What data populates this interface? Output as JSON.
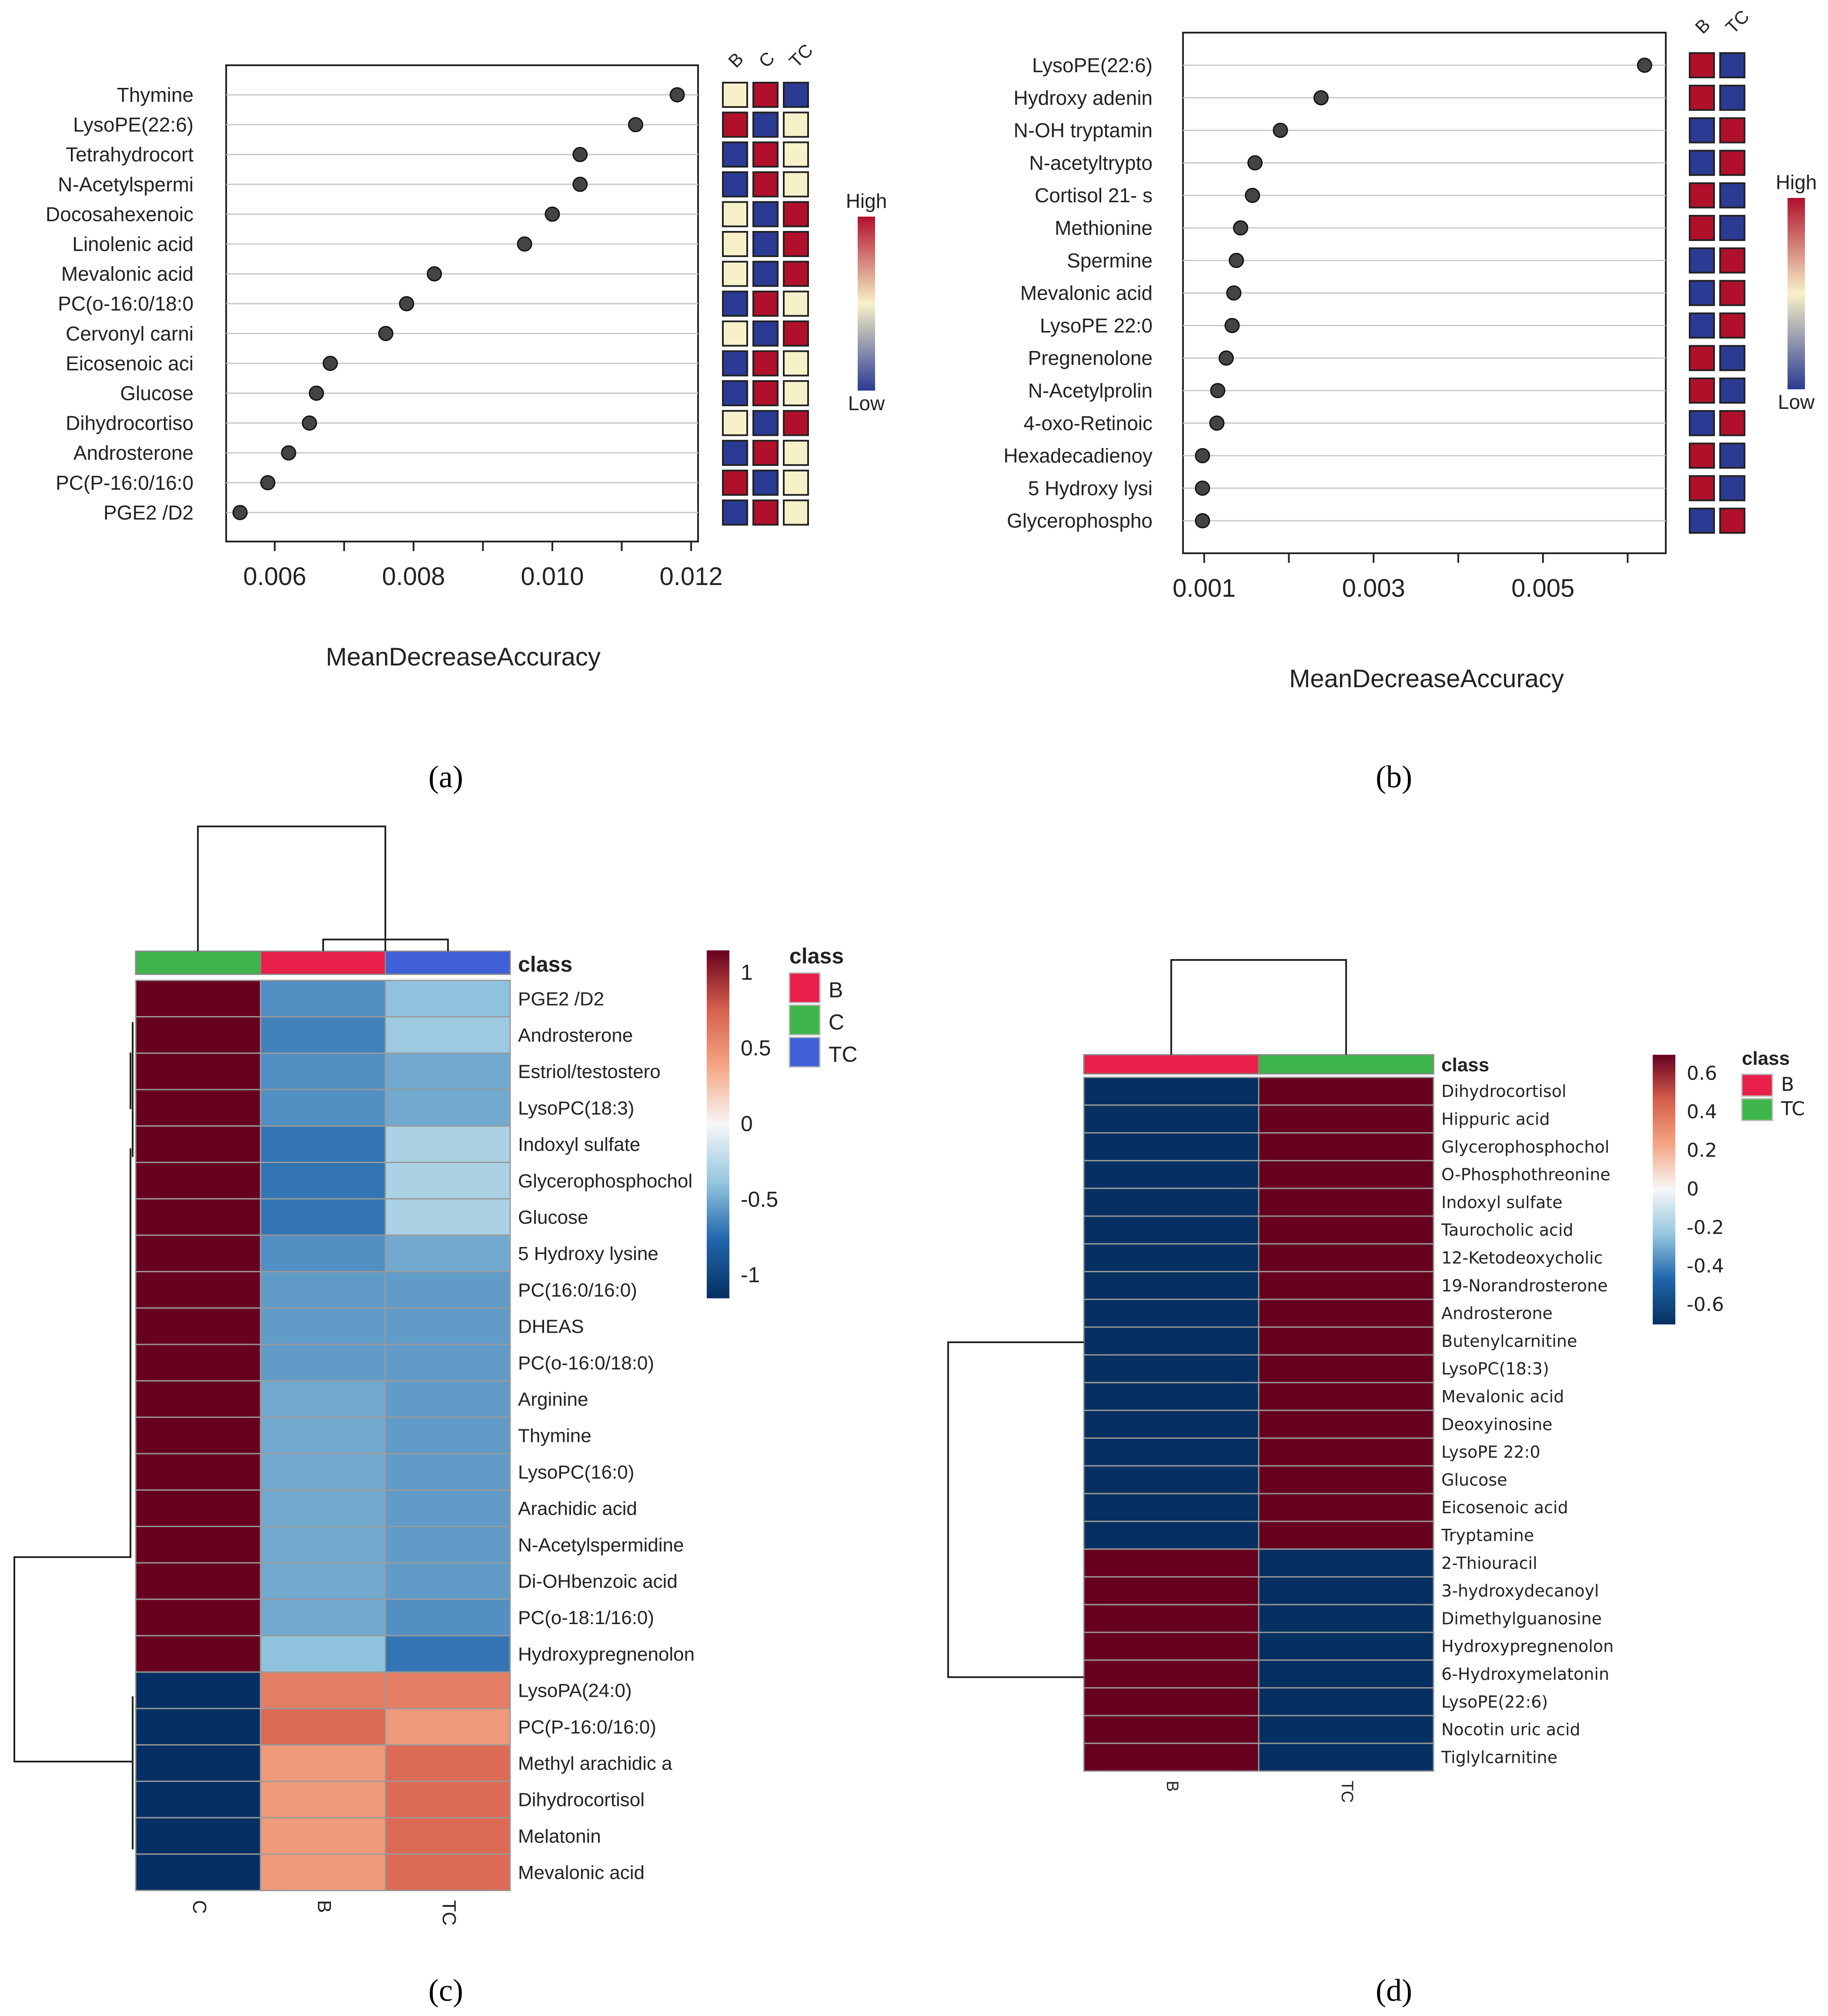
{
  "panels": [
    {
      "panel_label": "(a)",
      "chart_data": {
        "type": "scatter",
        "variant": "dot-plot (variable importance)",
        "xlabel": "MeanDecreaseAccuracy",
        "xticks": [
          "0.006",
          "0.008",
          "0.010",
          "0.012"
        ],
        "xlim": [
          0.0053,
          0.0121
        ],
        "features": [
          "Thymine",
          "LysoPE(22:6)",
          "Tetrahydrocort",
          "N-Acetylspermi",
          "Docosahexenoic",
          "Linolenic acid",
          "Mevalonic acid",
          "PC(o-16:0/18:0",
          "Cervonyl carni",
          "Eicosenoic aci",
          "Glucose",
          "Dihydrocortiso",
          "Androsterone",
          "PC(P-16:0/16:0",
          "PGE2 /D2"
        ],
        "values": [
          0.0118,
          0.0112,
          0.0104,
          0.0104,
          0.01,
          0.0096,
          0.0083,
          0.0079,
          0.0076,
          0.0068,
          0.0066,
          0.0065,
          0.0062,
          0.0059,
          0.0055
        ],
        "class_labels": [
          "B",
          "C",
          "TC"
        ],
        "class_levels": [
          [
            "M",
            "H",
            "L"
          ],
          [
            "H",
            "L",
            "M"
          ],
          [
            "L",
            "H",
            "M"
          ],
          [
            "L",
            "H",
            "M"
          ],
          [
            "M",
            "L",
            "H"
          ],
          [
            "M",
            "L",
            "H"
          ],
          [
            "M",
            "L",
            "H"
          ],
          [
            "L",
            "H",
            "M"
          ],
          [
            "M",
            "L",
            "H"
          ],
          [
            "L",
            "H",
            "M"
          ],
          [
            "L",
            "H",
            "M"
          ],
          [
            "M",
            "L",
            "H"
          ],
          [
            "L",
            "H",
            "M"
          ],
          [
            "H",
            "L",
            "M"
          ],
          [
            "L",
            "H",
            "M"
          ]
        ],
        "legend": {
          "high": "High",
          "low": "Low",
          "colors": [
            "#2b3a93",
            "#f7f1c9",
            "#b1102b"
          ]
        },
        "grid": true
      }
    },
    {
      "panel_label": "(b)",
      "chart_data": {
        "type": "scatter",
        "variant": "dot-plot (variable importance)",
        "xlabel": "MeanDecreaseAccuracy",
        "xticks": [
          "0.001",
          "0.003",
          "0.005"
        ],
        "xlim": [
          0.00075,
          0.00645
        ],
        "features": [
          "LysoPE(22:6)",
          "Hydroxy adenin",
          "N-OH tryptamin",
          "N-acetyltrypto",
          "Cortisol 21- s",
          "Methionine",
          "Spermine",
          "Mevalonic acid",
          "LysoPE 22:0",
          "Pregnenolone",
          "N-Acetylprolin",
          "4-oxo-Retinoic",
          "Hexadecadienoy",
          "5 Hydroxy lysi",
          "Glycerophospho"
        ],
        "values": [
          0.0062,
          0.00238,
          0.0019,
          0.0016,
          0.00157,
          0.00143,
          0.00138,
          0.00135,
          0.00133,
          0.00126,
          0.00116,
          0.00115,
          0.00098,
          0.00098,
          0.00098
        ],
        "class_labels": [
          "B",
          "TC"
        ],
        "class_levels": [
          [
            "H",
            "L"
          ],
          [
            "H",
            "L"
          ],
          [
            "L",
            "H"
          ],
          [
            "L",
            "H"
          ],
          [
            "H",
            "L"
          ],
          [
            "H",
            "L"
          ],
          [
            "L",
            "H"
          ],
          [
            "L",
            "H"
          ],
          [
            "L",
            "H"
          ],
          [
            "H",
            "L"
          ],
          [
            "H",
            "L"
          ],
          [
            "L",
            "H"
          ],
          [
            "H",
            "L"
          ],
          [
            "H",
            "L"
          ],
          [
            "L",
            "H"
          ]
        ],
        "legend": {
          "high": "High",
          "low": "Low",
          "colors": [
            "#2b3a93",
            "#f7f1c9",
            "#b1102b"
          ]
        },
        "grid": true
      }
    },
    {
      "panel_label": "(c)",
      "chart_data": {
        "type": "heatmap",
        "columns": [
          "C",
          "B",
          "TC"
        ],
        "annotation_title": "class",
        "annotation_colors": {
          "B": "#e8204a",
          "C": "#3db54a",
          "TC": "#4060d8"
        },
        "rows": [
          "PGE2 /D2",
          "Androsterone",
          "Estriol/testostero",
          "LysoPC(18:3)",
          "Indoxyl sulfate",
          "Glycerophosphochol",
          "Glucose",
          "5 Hydroxy lysine",
          "PC(16:0/16:0)",
          "DHEAS",
          "PC(o-16:0/18:0)",
          "Arginine",
          "Thymine",
          "LysoPC(16:0)",
          "Arachidic  acid",
          "N-Acetylspermidine",
          "Di-OHbenzoic acid",
          "PC(o-18:1/16:0)",
          "Hydroxypregnenolon",
          "LysoPA(24:0)",
          "PC(P-16:0/16:0)",
          "Methyl arachidic a",
          "Dihydrocortisol",
          "Melatonin",
          "Mevalonic acid"
        ],
        "values": [
          [
            1.15,
            -0.6,
            -0.4
          ],
          [
            1.15,
            -0.65,
            -0.35
          ],
          [
            1.15,
            -0.6,
            -0.5
          ],
          [
            1.15,
            -0.6,
            -0.5
          ],
          [
            1.15,
            -0.7,
            -0.3
          ],
          [
            1.15,
            -0.7,
            -0.3
          ],
          [
            1.15,
            -0.7,
            -0.3
          ],
          [
            1.15,
            -0.6,
            -0.5
          ],
          [
            1.15,
            -0.55,
            -0.55
          ],
          [
            1.15,
            -0.55,
            -0.55
          ],
          [
            1.15,
            -0.55,
            -0.55
          ],
          [
            1.15,
            -0.5,
            -0.55
          ],
          [
            1.15,
            -0.5,
            -0.55
          ],
          [
            1.15,
            -0.5,
            -0.55
          ],
          [
            1.15,
            -0.5,
            -0.55
          ],
          [
            1.15,
            -0.5,
            -0.55
          ],
          [
            1.15,
            -0.5,
            -0.55
          ],
          [
            1.15,
            -0.5,
            -0.6
          ],
          [
            1.15,
            -0.4,
            -0.7
          ],
          [
            -1.15,
            0.6,
            0.6
          ],
          [
            -1.15,
            0.7,
            0.45
          ],
          [
            -1.15,
            0.45,
            0.7
          ],
          [
            -1.15,
            0.45,
            0.7
          ],
          [
            -1.15,
            0.45,
            0.7
          ],
          [
            -1.15,
            0.45,
            0.7
          ]
        ],
        "colorbar": {
          "ticks": [
            "1",
            "0.5",
            "0",
            "-0.5",
            "-1"
          ],
          "range": [
            -1.15,
            1.15
          ]
        }
      }
    },
    {
      "panel_label": "(d)",
      "chart_data": {
        "type": "heatmap",
        "columns": [
          "B",
          "TC"
        ],
        "annotation_title": "class",
        "annotation_colors": {
          "B": "#e8204a",
          "TC": "#3db54a"
        },
        "rows": [
          "Dihydrocortisol",
          "Hippuric acid",
          "Glycerophosphochol",
          "O-Phosphothreonine",
          "Indoxyl sulfate",
          "Taurocholic acid",
          "12-Ketodeoxycholic",
          "19-Norandrosterone",
          "Androsterone",
          "Butenylcarnitine",
          "LysoPC(18:3)",
          "Mevalonic acid",
          "Deoxyinosine",
          "LysoPE 22:0",
          "Glucose",
          "Eicosenoic acid",
          "Tryptamine",
          "2-Thiouracil",
          "3-hydroxydecanoyl",
          "Dimethylguanosine",
          "Hydroxypregnenolon",
          "6-Hydroxymelatonin",
          "LysoPE(22:6)",
          "Nocotin uric acid",
          "Tiglylcarnitine"
        ],
        "values": [
          [
            -0.7,
            0.7
          ],
          [
            -0.7,
            0.7
          ],
          [
            -0.7,
            0.7
          ],
          [
            -0.7,
            0.7
          ],
          [
            -0.7,
            0.7
          ],
          [
            -0.7,
            0.7
          ],
          [
            -0.7,
            0.7
          ],
          [
            -0.7,
            0.7
          ],
          [
            -0.7,
            0.7
          ],
          [
            -0.7,
            0.7
          ],
          [
            -0.7,
            0.7
          ],
          [
            -0.7,
            0.7
          ],
          [
            -0.7,
            0.7
          ],
          [
            -0.7,
            0.7
          ],
          [
            -0.7,
            0.7
          ],
          [
            -0.7,
            0.7
          ],
          [
            -0.7,
            0.7
          ],
          [
            0.7,
            -0.7
          ],
          [
            0.7,
            -0.7
          ],
          [
            0.7,
            -0.7
          ],
          [
            0.7,
            -0.7
          ],
          [
            0.7,
            -0.7
          ],
          [
            0.7,
            -0.7
          ],
          [
            0.7,
            -0.7
          ],
          [
            0.7,
            -0.7
          ]
        ],
        "colorbar": {
          "ticks": [
            "0.6",
            "0.4",
            "0.2",
            "0",
            "-0.2",
            "-0.4",
            "-0.6"
          ],
          "range": [
            -0.7,
            0.7
          ]
        }
      }
    }
  ]
}
